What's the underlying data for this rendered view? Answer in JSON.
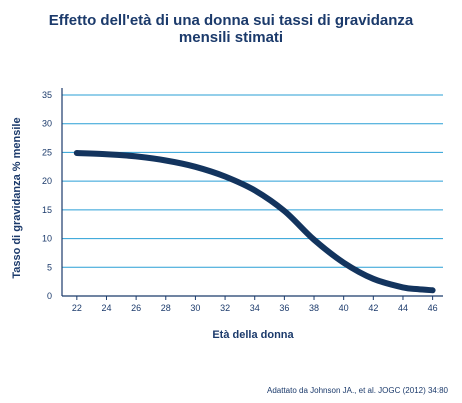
{
  "title_line1": "Effetto dell'età di una donna sui tassi di gravidanza",
  "title_line2": "mensili stimati",
  "source": "Adattato da Johnson JA., et al. JOGC (2012) 34:80",
  "colors": {
    "text": "#1b3a6b",
    "grid": "#2a9fd6",
    "axis": "#1b3a6b",
    "line": "#13345e"
  },
  "chart_data": {
    "type": "line",
    "xlabel": "Età della donna",
    "ylabel": "Tasso di gravidanza % mensile",
    "xlim": [
      21,
      46.7
    ],
    "ylim": [
      0,
      35
    ],
    "xticks": [
      22,
      24,
      26,
      28,
      30,
      32,
      34,
      36,
      38,
      40,
      42,
      44,
      46
    ],
    "yticks": [
      0,
      5,
      10,
      15,
      20,
      25,
      30,
      35
    ],
    "grid": "horizontal",
    "series": [
      {
        "x": [
          22,
          24,
          26,
          28,
          30,
          32,
          34,
          36,
          38,
          40,
          42,
          44,
          45,
          46
        ],
        "values": [
          24.9,
          24.7,
          24.3,
          23.6,
          22.5,
          20.8,
          18.4,
          14.8,
          9.8,
          5.8,
          3.0,
          1.5,
          1.2,
          1.0
        ]
      }
    ]
  }
}
